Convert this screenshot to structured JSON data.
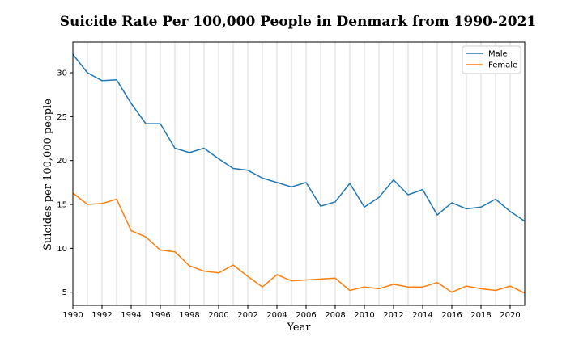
{
  "chart_data": {
    "type": "line",
    "title": "Suicide Rate Per 100,000 People in Denmark from 1990-2021",
    "xlabel": "Year",
    "ylabel": "Suicides per 100,000 people",
    "xlim": [
      1990,
      2021
    ],
    "ylim": [
      3.5,
      33.5
    ],
    "x_ticks": [
      1990,
      1992,
      1994,
      1996,
      1998,
      2000,
      2002,
      2004,
      2006,
      2008,
      2010,
      2012,
      2014,
      2016,
      2018,
      2020
    ],
    "y_ticks": [
      5,
      10,
      15,
      20,
      25,
      30
    ],
    "grid": "vertical, every year",
    "legend_position": "top-right",
    "x": [
      1990,
      1991,
      1992,
      1993,
      1994,
      1995,
      1996,
      1997,
      1998,
      1999,
      2000,
      2001,
      2002,
      2003,
      2004,
      2005,
      2006,
      2007,
      2008,
      2009,
      2010,
      2011,
      2012,
      2013,
      2014,
      2015,
      2016,
      2017,
      2018,
      2019,
      2020,
      2021
    ],
    "series": [
      {
        "name": "Male",
        "color": "#1f77b4",
        "values": [
          32.1,
          30.0,
          29.1,
          29.2,
          26.5,
          24.2,
          24.2,
          21.4,
          20.9,
          21.4,
          20.2,
          19.1,
          18.9,
          18.0,
          17.5,
          17.0,
          17.5,
          14.8,
          15.3,
          17.4,
          14.7,
          15.8,
          17.8,
          16.1,
          16.7,
          13.8,
          15.2,
          14.5,
          14.7,
          15.6,
          14.2,
          13.1
        ]
      },
      {
        "name": "Female",
        "color": "#ff7f0e",
        "values": [
          16.3,
          15.0,
          15.1,
          15.6,
          12.0,
          11.3,
          9.8,
          9.6,
          8.0,
          7.4,
          7.2,
          8.1,
          6.8,
          5.6,
          7.0,
          6.3,
          6.4,
          6.5,
          6.6,
          5.2,
          5.6,
          5.4,
          5.9,
          5.6,
          5.6,
          6.1,
          5.0,
          5.7,
          5.4,
          5.2,
          5.7,
          4.9
        ]
      }
    ]
  }
}
